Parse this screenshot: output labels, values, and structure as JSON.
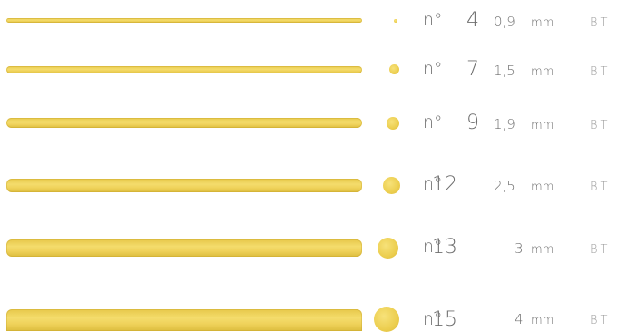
{
  "prefix": "n°",
  "unit": "mm",
  "brand": "BT",
  "items": [
    {
      "number": "4",
      "diameter": "0,9",
      "diameter_mm": 0.9
    },
    {
      "number": "7",
      "diameter": "1,5",
      "diameter_mm": 1.5
    },
    {
      "number": "9",
      "diameter": "1,9",
      "diameter_mm": 1.9
    },
    {
      "number": "12",
      "diameter": "2,5",
      "diameter_mm": 2.5
    },
    {
      "number": "13",
      "diameter": "3",
      "diameter_mm": 3
    },
    {
      "number": "15",
      "diameter": "4",
      "diameter_mm": 4
    }
  ],
  "colors": {
    "pasta": "#f0d35c",
    "text": "#6f6f6f",
    "brand": "#9a9a9a"
  }
}
